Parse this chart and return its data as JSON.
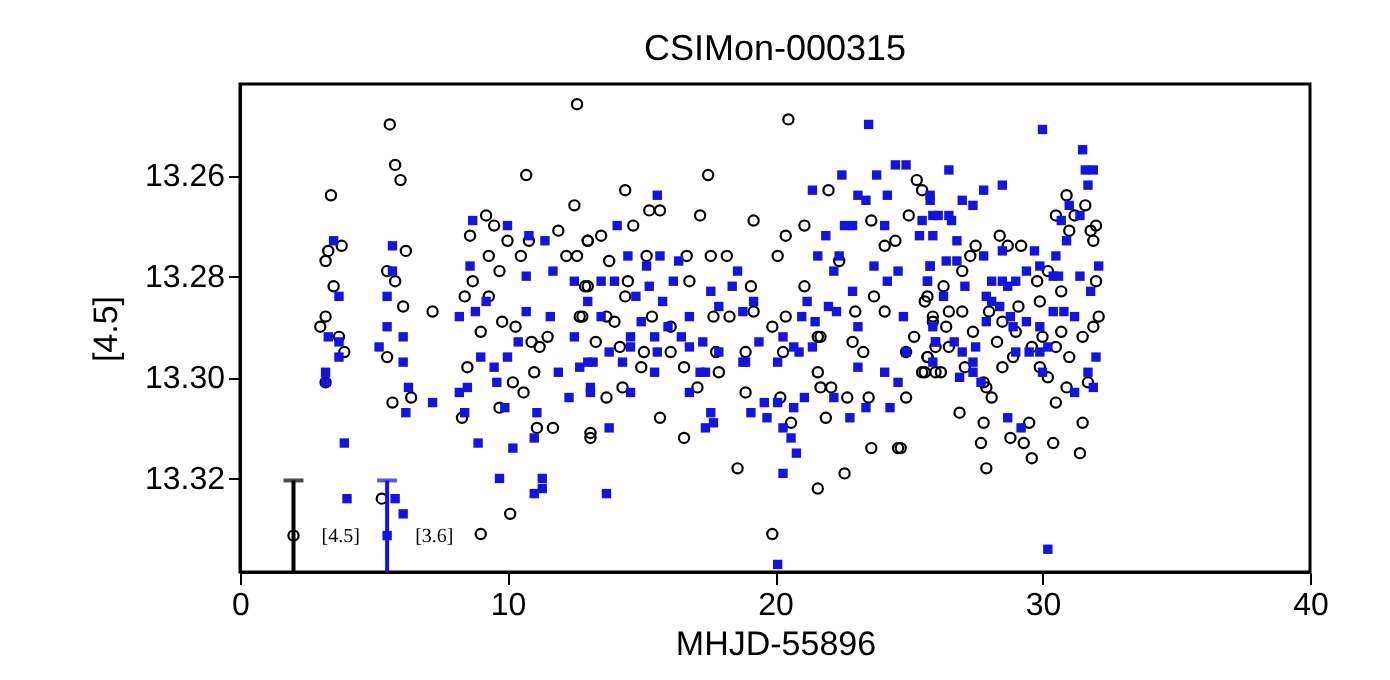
{
  "chart_data": {
    "type": "scatter",
    "title": "CSIMon-000315",
    "xlabel": "MHJD-55896",
    "ylabel": "[4.5]",
    "xlim": [
      0,
      40
    ],
    "xticks": [
      0,
      10,
      20,
      30,
      40
    ],
    "ylim": [
      13.3385,
      13.242
    ],
    "yticks": [
      13.26,
      13.28,
      {
        "value": 13.3,
        "label": "13.30"
      },
      13.32
    ],
    "grid": false,
    "series": [
      {
        "color": "#000000",
        "marker": "circle",
        "x": [
          5.6,
          5.8,
          6.0,
          3.4,
          10.7,
          12.6,
          12.5,
          3.8,
          3.3,
          3.2,
          3.5,
          3.2,
          3.0,
          3.7,
          3.9,
          3.2,
          5.5,
          5.5,
          5.8,
          6.2,
          6.1,
          7.2,
          5.7,
          6.4,
          9.2,
          8.6,
          9.5,
          9.3,
          9.7,
          10.0,
          10.5,
          10.8,
          8.7,
          8.4,
          9.3,
          9.8,
          9.0,
          10.3,
          10.9,
          11.2,
          11.5,
          8.5,
          10.2,
          10.6,
          9.7,
          8.3,
          11.1,
          11.7,
          11.0,
          11.9,
          12.6,
          13.0,
          12.2,
          12.9,
          12.7,
          13.1,
          5.3,
          10.1,
          9.0,
          20.5,
          17.5,
          14.4,
          15.3,
          15.7,
          14.7,
          17.2,
          19.2,
          21.1,
          22.0,
          25.3,
          25.5,
          25.0,
          13.0,
          13.5,
          13.8,
          15.2,
          16.7,
          17.6,
          18.2,
          20.1,
          20.4,
          23.6,
          24.1,
          24.5,
          22.4,
          13.0,
          14.5,
          14.4,
          16.8,
          19.1,
          21.1,
          23.7,
          25.7,
          25.9,
          12.8,
          13.7,
          14.0,
          15.4,
          16.1,
          17.7,
          18.3,
          19.2,
          19.9,
          20.4,
          21.6,
          23.0,
          24.1,
          25.2,
          13.3,
          14.2,
          15.1,
          16.1,
          17.8,
          18.9,
          20.3,
          21.7,
          22.9,
          23.3,
          24.9,
          25.7,
          15.0,
          16.6,
          17.9,
          21.6,
          21.7,
          22.1,
          25.6,
          26.0,
          13.7,
          14.3,
          17.1,
          18.9,
          20.2,
          22.7,
          23.5,
          24.9,
          13.1,
          15.7,
          16.6,
          20.6,
          21.9,
          23.6,
          24.6,
          24.7,
          18.6,
          22.6,
          21.6,
          19.9,
          30.9,
          31.6,
          30.5,
          31.2,
          32.0,
          31.8,
          31.9,
          31.0,
          28.4,
          29.2,
          28.7,
          27.5,
          27.3,
          27.0,
          32.0,
          30.7,
          29.8,
          30.2,
          26.3,
          25.6,
          29.9,
          29.1,
          32.1,
          31.9,
          25.9,
          26.5,
          27.0,
          28.0,
          28.5,
          26.4,
          27.4,
          29.0,
          30.0,
          30.7,
          31.5,
          28.3,
          26.5,
          25.7,
          26.0,
          29.6,
          30.5,
          28.9,
          31.0,
          29.9,
          30.2,
          25.5,
          26.2,
          27.1,
          28.5,
          27.8,
          27.9,
          28.1,
          30.9,
          31.7,
          30.5,
          26.9,
          27.8,
          29.5,
          31.5,
          27.7,
          28.8,
          29.3,
          30.4,
          31.4,
          29.6,
          27.9
        ],
        "values": [
          13.25,
          13.258,
          13.261,
          13.264,
          13.26,
          13.246,
          13.266,
          13.274,
          13.275,
          13.277,
          13.282,
          13.288,
          13.29,
          13.292,
          13.295,
          13.301,
          13.296,
          13.279,
          13.281,
          13.275,
          13.286,
          13.287,
          13.305,
          13.304,
          13.268,
          13.272,
          13.27,
          13.276,
          13.279,
          13.273,
          13.276,
          13.273,
          13.281,
          13.284,
          13.284,
          13.289,
          13.291,
          13.29,
          13.293,
          13.294,
          13.292,
          13.298,
          13.301,
          13.303,
          13.306,
          13.308,
          13.31,
          13.31,
          13.299,
          13.271,
          13.276,
          13.273,
          13.276,
          13.282,
          13.288,
          13.311,
          13.324,
          13.327,
          13.331,
          13.249,
          13.26,
          13.263,
          13.267,
          13.267,
          13.27,
          13.268,
          13.269,
          13.27,
          13.263,
          13.261,
          13.263,
          13.268,
          13.273,
          13.272,
          13.277,
          13.276,
          13.276,
          13.276,
          13.276,
          13.276,
          13.272,
          13.269,
          13.274,
          13.273,
          13.277,
          13.282,
          13.281,
          13.284,
          13.281,
          13.282,
          13.282,
          13.284,
          13.284,
          13.289,
          13.288,
          13.288,
          13.289,
          13.288,
          13.29,
          13.288,
          13.288,
          13.287,
          13.29,
          13.288,
          13.292,
          13.287,
          13.287,
          13.292,
          13.293,
          13.294,
          13.295,
          13.295,
          13.295,
          13.295,
          13.295,
          13.292,
          13.293,
          13.295,
          13.295,
          13.296,
          13.298,
          13.298,
          13.299,
          13.299,
          13.302,
          13.302,
          13.299,
          13.299,
          13.304,
          13.302,
          13.302,
          13.303,
          13.304,
          13.304,
          13.304,
          13.304,
          13.312,
          13.308,
          13.312,
          13.309,
          13.308,
          13.314,
          13.314,
          13.314,
          13.318,
          13.319,
          13.322,
          13.331,
          13.264,
          13.266,
          13.268,
          13.268,
          13.27,
          13.271,
          13.273,
          13.271,
          13.272,
          13.274,
          13.274,
          13.274,
          13.276,
          13.279,
          13.281,
          13.283,
          13.281,
          13.279,
          13.282,
          13.285,
          13.285,
          13.286,
          13.288,
          13.29,
          13.288,
          13.287,
          13.287,
          13.287,
          13.289,
          13.29,
          13.291,
          13.291,
          13.292,
          13.291,
          13.292,
          13.293,
          13.294,
          13.296,
          13.294,
          13.294,
          13.294,
          13.296,
          13.296,
          13.298,
          13.3,
          13.299,
          13.299,
          13.298,
          13.298,
          13.301,
          13.302,
          13.304,
          13.302,
          13.301,
          13.305,
          13.307,
          13.309,
          13.309,
          13.309,
          13.313,
          13.312,
          13.313,
          13.313,
          13.315,
          13.316,
          13.318
        ]
      },
      {
        "color": "#1414e0",
        "marker": "square",
        "x": [
          8.7,
          10.0,
          10.8,
          11.4,
          5.7,
          3.5,
          8.6,
          8.2,
          8.8,
          9.2,
          10.7,
          11.7,
          12.5,
          3.7,
          3.3,
          3.7,
          3.7,
          3.2,
          3.2,
          5.5,
          5.7,
          5.5,
          6.1,
          5.2,
          6.1,
          6.3,
          6.2,
          7.2,
          8.2,
          8.5,
          8.4,
          9.0,
          9.5,
          9.6,
          10.0,
          9.9,
          10.4,
          10.7,
          11.6,
          12.5,
          13.0,
          13.1,
          12.3,
          11.9,
          8.9,
          10.2,
          11.1,
          11.0,
          3.9,
          9.7,
          11.3,
          11.3,
          11.0,
          4.0,
          5.8,
          6.1,
          23.5,
          15.6,
          14.1,
          22.5,
          23.8,
          24.5,
          24.9,
          21.4,
          23.1,
          23.4,
          24.2,
          25.8,
          21.9,
          22.6,
          22.9,
          24.1,
          15.7,
          16.4,
          14.5,
          15.2,
          18.6,
          21.6,
          22.4,
          22.2,
          23.7,
          24.6,
          25.4,
          25.8,
          13.5,
          14.0,
          15.3,
          16.2,
          17.6,
          18.4,
          19.2,
          21.2,
          22.0,
          22.9,
          24.2,
          25.7,
          13.0,
          14.8,
          15.8,
          13.5,
          15.0,
          16.0,
          16.8,
          17.9,
          18.8,
          21.0,
          21.5,
          22.3,
          23.1,
          24.8,
          25.9,
          14.6,
          15.5,
          16.5,
          17.3,
          19.4,
          20.3,
          13.8,
          14.6,
          15.6,
          16.8,
          17.9,
          18.8,
          20.7,
          21.4,
          23.1,
          24.9,
          26.0,
          12.7,
          13.2,
          14.3,
          15.5,
          17.4,
          18.9,
          20.1,
          20.9,
          24.1,
          24.6,
          25.9,
          13.1,
          14.6,
          16.8,
          17.2,
          19.6,
          20.1,
          20.7,
          21.1,
          22.2,
          23.4,
          24.3,
          17.6,
          17.7,
          17.4,
          19.1,
          19.7,
          13.8,
          20.3,
          22.8,
          20.6,
          20.8,
          20.3,
          13.7,
          20.1,
          30.0,
          31.5,
          31.6,
          31.9,
          31.7,
          26.5,
          27.8,
          28.5,
          27.0,
          27.4,
          25.8,
          25.9,
          26.1,
          26.5,
          26.6,
          25.5,
          31.0,
          31.4,
          30.7,
          30.9,
          26.8,
          25.9,
          29.7,
          30.5,
          32.1,
          26.4,
          26.8,
          27.8,
          28.5,
          25.8,
          25.7,
          27.1,
          29.4,
          29.9,
          30.4,
          31.4,
          30.6,
          28.1,
          28.5,
          28.7,
          29.0,
          31.8,
          26.3,
          27.9,
          28.1,
          28.4,
          30.4,
          30.8,
          31.2,
          28.8,
          28.9,
          29.4,
          29.9,
          27.9,
          26.0,
          26.7,
          27.0,
          27.5,
          29.0,
          29.5,
          29.9,
          30.2,
          27.4,
          32.0,
          31.7,
          31.9,
          31.2,
          30.0,
          26.9,
          27.4,
          27.7,
          28.7,
          29.2,
          30.2
        ],
        "values": [
          13.269,
          13.27,
          13.272,
          13.273,
          13.274,
          13.273,
          13.278,
          13.288,
          13.287,
          13.285,
          13.28,
          13.279,
          13.281,
          13.284,
          13.292,
          13.293,
          13.296,
          13.299,
          13.301,
          13.284,
          13.279,
          13.29,
          13.292,
          13.294,
          13.297,
          13.302,
          13.307,
          13.305,
          13.303,
          13.302,
          13.307,
          13.296,
          13.298,
          13.301,
          13.296,
          13.306,
          13.293,
          13.287,
          13.288,
          13.292,
          13.297,
          13.302,
          13.304,
          13.299,
          13.313,
          13.314,
          13.307,
          13.312,
          13.313,
          13.32,
          13.32,
          13.322,
          13.323,
          13.324,
          13.324,
          13.327,
          13.25,
          13.264,
          13.27,
          13.26,
          13.26,
          13.258,
          13.258,
          13.263,
          13.264,
          13.265,
          13.264,
          13.265,
          13.272,
          13.27,
          13.27,
          13.27,
          13.276,
          13.277,
          13.276,
          13.278,
          13.279,
          13.276,
          13.276,
          13.279,
          13.278,
          13.279,
          13.272,
          13.278,
          13.281,
          13.281,
          13.282,
          13.281,
          13.283,
          13.282,
          13.285,
          13.285,
          13.286,
          13.283,
          13.281,
          13.281,
          13.285,
          13.284,
          13.285,
          13.288,
          13.289,
          13.29,
          13.288,
          13.286,
          13.287,
          13.288,
          13.289,
          13.287,
          13.29,
          13.288,
          13.29,
          13.292,
          13.292,
          13.292,
          13.293,
          13.293,
          13.292,
          13.295,
          13.294,
          13.295,
          13.294,
          13.295,
          13.297,
          13.294,
          13.294,
          13.298,
          13.295,
          13.293,
          13.298,
          13.297,
          13.297,
          13.299,
          13.299,
          13.297,
          13.297,
          13.295,
          13.299,
          13.301,
          13.297,
          13.303,
          13.303,
          13.303,
          13.299,
          13.305,
          13.305,
          13.306,
          13.304,
          13.304,
          13.306,
          13.306,
          13.307,
          13.309,
          13.31,
          13.307,
          13.308,
          13.31,
          13.31,
          13.308,
          13.312,
          13.315,
          13.319,
          13.323,
          13.337,
          13.251,
          13.255,
          13.259,
          13.259,
          13.262,
          13.259,
          13.263,
          13.262,
          13.265,
          13.266,
          13.264,
          13.268,
          13.268,
          13.268,
          13.269,
          13.269,
          13.266,
          13.268,
          13.269,
          13.273,
          13.273,
          13.272,
          13.275,
          13.276,
          13.278,
          13.277,
          13.277,
          13.276,
          13.275,
          13.278,
          13.281,
          13.282,
          13.279,
          13.278,
          13.28,
          13.28,
          13.28,
          13.281,
          13.281,
          13.282,
          13.281,
          13.283,
          13.284,
          13.284,
          13.285,
          13.286,
          13.287,
          13.287,
          13.288,
          13.288,
          13.29,
          13.289,
          13.29,
          13.289,
          13.293,
          13.293,
          13.295,
          13.294,
          13.295,
          13.295,
          13.295,
          13.294,
          13.297,
          13.296,
          13.299,
          13.302,
          13.303,
          13.299,
          13.3,
          13.299,
          13.301,
          13.308,
          13.31,
          13.334
        ]
      },
      {
        "name": "[4.5]",
        "color": "#000000",
        "marker": "circle",
        "x": [
          2.0
        ],
        "values": [
          13.3313
        ],
        "errors": [
          [
            13.3204,
            13.3385
          ]
        ]
      },
      {
        "name": "[3.6]",
        "color": "#1414e0",
        "marker": "square",
        "x": [
          5.5
        ],
        "values": [
          13.3313
        ],
        "errors": [
          [
            13.3204,
            13.3385
          ]
        ]
      }
    ]
  }
}
